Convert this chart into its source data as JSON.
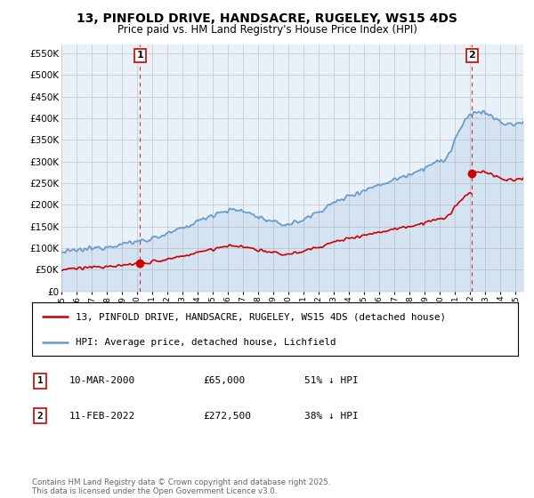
{
  "title": "13, PINFOLD DRIVE, HANDSACRE, RUGELEY, WS15 4DS",
  "subtitle": "Price paid vs. HM Land Registry's House Price Index (HPI)",
  "ylim": [
    0,
    570000
  ],
  "yticks": [
    0,
    50000,
    100000,
    150000,
    200000,
    250000,
    300000,
    350000,
    400000,
    450000,
    500000,
    550000
  ],
  "sale1_year": 2000.19,
  "sale1_price": 65000,
  "sale1_label": "1",
  "sale2_year": 2022.12,
  "sale2_price": 272500,
  "sale2_label": "2",
  "red_line_color": "#cc0000",
  "blue_line_color": "#6699cc",
  "blue_fill_color": "#ddeeff",
  "grid_color": "#cccccc",
  "background_color": "#ffffff",
  "chart_bg_color": "#e8f0f8",
  "legend1_text": "13, PINFOLD DRIVE, HANDSACRE, RUGELEY, WS15 4DS (detached house)",
  "legend2_text": "HPI: Average price, detached house, Lichfield",
  "table_row1": [
    "1",
    "10-MAR-2000",
    "£65,000",
    "51% ↓ HPI"
  ],
  "table_row2": [
    "2",
    "11-FEB-2022",
    "£272,500",
    "38% ↓ HPI"
  ],
  "footnote": "Contains HM Land Registry data © Crown copyright and database right 2025.\nThis data is licensed under the Open Government Licence v3.0.",
  "xlim_start": 1995,
  "xlim_end": 2025.5
}
